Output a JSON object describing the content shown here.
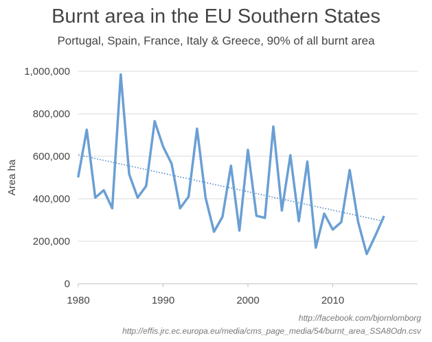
{
  "chart_data": {
    "type": "line",
    "title": "Burnt area in the EU Southern States",
    "subtitle": "Portugal, Spain, France, Italy & Greece, 90% of all burnt area",
    "ylabel": "Area ha",
    "xlabel": "",
    "xlim": [
      1980,
      2020
    ],
    "ylim": [
      0,
      1000000
    ],
    "x_ticks": [
      1980,
      1990,
      2000,
      2010
    ],
    "y_ticks": [
      0,
      200000,
      400000,
      600000,
      800000,
      1000000
    ],
    "x_tick_labels": [
      "1980",
      "1990",
      "2000",
      "2010"
    ],
    "y_tick_labels": [
      "0",
      "200,000",
      "400,000",
      "600,000",
      "800,000",
      "1,000,000"
    ],
    "grid": "horizontal",
    "legend": "none",
    "series": [
      {
        "color": "#6a9fd4",
        "x": [
          1980,
          1981,
          1982,
          1983,
          1984,
          1985,
          1986,
          1987,
          1988,
          1989,
          1990,
          1991,
          1992,
          1993,
          1994,
          1995,
          1996,
          1997,
          1998,
          1999,
          2000,
          2001,
          2002,
          2003,
          2004,
          2005,
          2006,
          2007,
          2008,
          2009,
          2010,
          2011,
          2012,
          2013,
          2014,
          2015,
          2016
        ],
        "values": [
          505000,
          725000,
          405000,
          440000,
          355000,
          985000,
          515000,
          405000,
          460000,
          765000,
          645000,
          565000,
          355000,
          410000,
          730000,
          405000,
          245000,
          315000,
          555000,
          250000,
          630000,
          320000,
          310000,
          740000,
          345000,
          605000,
          295000,
          575000,
          170000,
          330000,
          255000,
          290000,
          535000,
          290000,
          140000,
          225000,
          315000
        ]
      }
    ],
    "trendline": {
      "color": "#3f7cbf",
      "style": "dotted",
      "x": [
        1980,
        2016
      ],
      "values": [
        607000,
        294000
      ]
    }
  },
  "credits": {
    "line1": "http://facebook.com/bjornlomborg",
    "line2": "http://effis.jrc.ec.europa.eu/media/cms_page_media/54/burnt_area_SSA8Odn.csv"
  },
  "colors": {
    "line": "#6a9fd4",
    "trend": "#3f7cbf",
    "grid": "#d9d9d9",
    "text": "#444444"
  }
}
